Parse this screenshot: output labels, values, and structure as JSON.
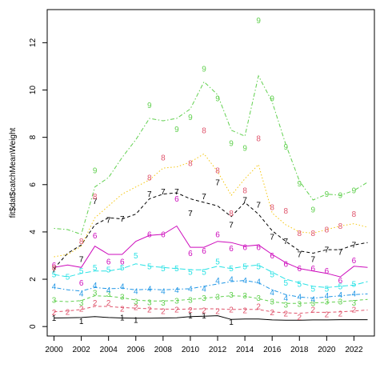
{
  "chart_data": {
    "type": "line",
    "ylabel": "fit$dat$catchMeanWeight",
    "xlabel": "",
    "xlim": [
      1999.5,
      2023.5
    ],
    "ylim": [
      -0.4,
      13.4
    ],
    "x_ticks": [
      2000,
      2002,
      2004,
      2006,
      2008,
      2010,
      2012,
      2014,
      2016,
      2018,
      2020,
      2022
    ],
    "x_tick_labels": [
      "2000",
      "2002",
      "2004",
      "2006",
      "2008",
      "2010",
      "2012",
      "2014",
      "2016",
      "2018",
      "2020",
      "2022"
    ],
    "y_ticks": [
      0,
      2,
      4,
      6,
      8,
      10,
      12
    ],
    "y_tick_labels": [
      "0",
      "2",
      "4",
      "6",
      "8",
      "10",
      "12"
    ],
    "grid": false,
    "legend": "none",
    "series": [
      {
        "marker": "1",
        "color": "#000000",
        "line_style": "solid",
        "points": {
          "x": [
            2000,
            2002,
            2005,
            2006,
            2010,
            2011,
            2013
          ],
          "y": [
            0.36,
            0.22,
            0.38,
            0.28,
            0.46,
            0.46,
            0.2
          ]
        },
        "fit": {
          "x": [
            2000,
            2001,
            2002,
            2003,
            2004,
            2005,
            2006,
            2007,
            2008,
            2009,
            2010,
            2011,
            2012,
            2013,
            2014,
            2015,
            2016,
            2017,
            2018,
            2019,
            2020,
            2021,
            2022,
            2023
          ],
          "y": [
            0.36,
            0.37,
            0.38,
            0.42,
            0.38,
            0.36,
            0.35,
            0.35,
            0.36,
            0.37,
            0.42,
            0.44,
            0.46,
            0.3,
            0.32,
            0.32,
            0.28,
            0.27,
            0.27,
            0.28,
            0.28,
            0.29,
            0.29,
            0.29
          ]
        }
      },
      {
        "marker": "2",
        "color": "#df536b",
        "line_style": "dashed",
        "points": {
          "x": [
            2000,
            2001,
            2002,
            2003,
            2004,
            2005,
            2006,
            2007,
            2008,
            2009,
            2010,
            2011,
            2012,
            2013,
            2014,
            2015,
            2016,
            2017,
            2018,
            2019,
            2020,
            2021,
            2022
          ],
          "y": [
            0.6,
            0.62,
            0.75,
            1.0,
            1.0,
            0.75,
            0.82,
            0.72,
            0.65,
            0.72,
            0.7,
            0.68,
            0.65,
            0.72,
            0.68,
            0.85,
            0.6,
            0.55,
            0.4,
            0.72,
            0.52,
            0.55,
            0.72
          ]
        },
        "fit": {
          "x": [
            2000,
            2001,
            2002,
            2003,
            2004,
            2005,
            2006,
            2007,
            2008,
            2009,
            2010,
            2011,
            2012,
            2013,
            2014,
            2015,
            2016,
            2017,
            2018,
            2019,
            2020,
            2021,
            2022,
            2023
          ],
          "y": [
            0.62,
            0.66,
            0.72,
            0.85,
            0.85,
            0.8,
            0.78,
            0.75,
            0.74,
            0.73,
            0.74,
            0.75,
            0.75,
            0.72,
            0.73,
            0.72,
            0.62,
            0.58,
            0.56,
            0.6,
            0.6,
            0.62,
            0.66,
            0.7
          ]
        }
      },
      {
        "marker": "3",
        "color": "#61d04f",
        "line_style": "dashed",
        "points": {
          "x": [
            2000,
            2002,
            2003,
            2004,
            2005,
            2006,
            2007,
            2008,
            2009,
            2010,
            2011,
            2012,
            2013,
            2014,
            2015,
            2016,
            2017,
            2018,
            2019,
            2020,
            2021,
            2022
          ],
          "y": [
            1.12,
            1.0,
            1.42,
            1.38,
            1.25,
            1.05,
            1.02,
            1.0,
            1.08,
            1.12,
            1.2,
            1.25,
            1.35,
            1.3,
            1.2,
            1.05,
            0.92,
            0.95,
            0.98,
            1.05,
            1.05,
            1.0
          ]
        },
        "fit": {
          "x": [
            2000,
            2001,
            2002,
            2003,
            2004,
            2005,
            2006,
            2007,
            2008,
            2009,
            2010,
            2011,
            2012,
            2013,
            2014,
            2015,
            2016,
            2017,
            2018,
            2019,
            2020,
            2021,
            2022,
            2023
          ],
          "y": [
            1.08,
            1.05,
            1.1,
            1.3,
            1.28,
            1.22,
            1.12,
            1.08,
            1.08,
            1.1,
            1.15,
            1.2,
            1.25,
            1.3,
            1.28,
            1.18,
            1.05,
            0.98,
            0.98,
            1.0,
            1.02,
            1.05,
            1.1,
            1.15
          ]
        }
      },
      {
        "marker": "4",
        "color": "#2297e6",
        "line_style": "dotdash",
        "points": {
          "x": [
            2000,
            2002,
            2003,
            2004,
            2005,
            2006,
            2007,
            2008,
            2009,
            2010,
            2011,
            2012,
            2013,
            2014,
            2015,
            2016,
            2017,
            2018,
            2019,
            2020,
            2021,
            2022
          ],
          "y": [
            1.7,
            1.4,
            1.75,
            1.55,
            1.7,
            1.5,
            1.6,
            1.5,
            1.55,
            1.6,
            1.6,
            1.95,
            2.0,
            1.95,
            1.9,
            1.45,
            1.2,
            1.25,
            1.15,
            1.3,
            1.35,
            1.4
          ]
        },
        "fit": {
          "x": [
            2000,
            2001,
            2002,
            2003,
            2004,
            2005,
            2006,
            2007,
            2008,
            2009,
            2010,
            2011,
            2012,
            2013,
            2014,
            2015,
            2016,
            2017,
            2018,
            2019,
            2020,
            2021,
            2022,
            2023
          ],
          "y": [
            1.65,
            1.55,
            1.5,
            1.65,
            1.6,
            1.62,
            1.55,
            1.58,
            1.55,
            1.58,
            1.6,
            1.7,
            1.8,
            1.9,
            1.95,
            1.85,
            1.55,
            1.35,
            1.25,
            1.2,
            1.25,
            1.3,
            1.35,
            1.38
          ]
        }
      },
      {
        "marker": "5",
        "color": "#28e2e5",
        "line_style": "longdash",
        "points": {
          "x": [
            2000,
            2001,
            2002,
            2003,
            2004,
            2005,
            2006,
            2007,
            2008,
            2009,
            2010,
            2011,
            2012,
            2013,
            2014,
            2015,
            2016,
            2017,
            2018,
            2019,
            2020,
            2021,
            2022
          ],
          "y": [
            2.2,
            2.1,
            2.35,
            2.5,
            2.4,
            2.5,
            3.0,
            2.55,
            2.45,
            2.45,
            2.3,
            2.3,
            2.75,
            2.45,
            2.55,
            2.55,
            2.2,
            1.85,
            1.8,
            1.6,
            1.6,
            1.7,
            1.8
          ]
        },
        "fit": {
          "x": [
            2000,
            2001,
            2002,
            2003,
            2004,
            2005,
            2006,
            2007,
            2008,
            2009,
            2010,
            2011,
            2012,
            2013,
            2014,
            2015,
            2016,
            2017,
            2018,
            2019,
            2020,
            2021,
            2022,
            2023
          ],
          "y": [
            2.2,
            2.1,
            2.25,
            2.35,
            2.35,
            2.45,
            2.65,
            2.55,
            2.5,
            2.45,
            2.4,
            2.4,
            2.55,
            2.45,
            2.55,
            2.6,
            2.3,
            2.0,
            1.85,
            1.7,
            1.65,
            1.7,
            1.75,
            1.9
          ]
        }
      },
      {
        "marker": "6",
        "color": "#cd0bbc",
        "line_style": "solid",
        "points": {
          "x": [
            2000,
            2002,
            2003,
            2004,
            2005,
            2007,
            2008,
            2009,
            2010,
            2011,
            2012,
            2013,
            2014,
            2015,
            2016,
            2017,
            2018,
            2019,
            2020,
            2021,
            2022
          ],
          "y": [
            2.6,
            1.85,
            3.85,
            2.75,
            2.75,
            3.9,
            3.9,
            5.4,
            3.1,
            3.2,
            3.9,
            3.3,
            3.35,
            3.35,
            3.0,
            2.65,
            2.45,
            2.45,
            2.35,
            1.95,
            2.8
          ]
        },
        "fit": {
          "x": [
            2000,
            2001,
            2002,
            2003,
            2004,
            2005,
            2006,
            2007,
            2008,
            2009,
            2010,
            2011,
            2012,
            2013,
            2014,
            2015,
            2016,
            2017,
            2018,
            2019,
            2020,
            2021,
            2022,
            2023
          ],
          "y": [
            2.5,
            2.6,
            2.5,
            3.4,
            3.05,
            3.05,
            3.6,
            3.85,
            3.9,
            4.25,
            3.35,
            3.35,
            3.6,
            3.55,
            3.4,
            3.45,
            3.05,
            2.7,
            2.45,
            2.35,
            2.25,
            2.1,
            2.55,
            2.5
          ]
        }
      },
      {
        "marker": "7",
        "color": "#000000",
        "line_style": "dashed",
        "points": {
          "x": [
            2000,
            2002,
            2003,
            2004,
            2005,
            2007,
            2008,
            2009,
            2010,
            2011,
            2012,
            2013,
            2014,
            2015,
            2016,
            2017,
            2018,
            2019,
            2020,
            2021,
            2022
          ],
          "y": [
            2.4,
            2.85,
            5.3,
            4.5,
            4.55,
            5.6,
            5.7,
            5.7,
            4.8,
            5.5,
            6.1,
            4.3,
            5.35,
            5.15,
            3.8,
            3.6,
            3.05,
            2.85,
            3.25,
            3.15,
            3.45
          ]
        },
        "fit": {
          "x": [
            2000,
            2001,
            2002,
            2003,
            2004,
            2005,
            2006,
            2007,
            2008,
            2009,
            2010,
            2011,
            2012,
            2013,
            2014,
            2015,
            2016,
            2017,
            2018,
            2019,
            2020,
            2021,
            2022,
            2023
          ],
          "y": [
            2.45,
            3.1,
            3.45,
            4.3,
            4.6,
            4.55,
            4.75,
            5.4,
            5.6,
            5.65,
            5.4,
            5.25,
            5.1,
            4.65,
            5.25,
            4.75,
            4.05,
            3.6,
            3.2,
            3.1,
            3.25,
            3.25,
            3.45,
            3.55
          ]
        }
      },
      {
        "marker": "8",
        "color": "#f5c710",
        "text_color": "#df536b",
        "line_style": "dotted",
        "points": {
          "x": [
            2000,
            2002,
            2003,
            2007,
            2008,
            2010,
            2011,
            2012,
            2013,
            2014,
            2015,
            2016,
            2017,
            2018,
            2019,
            2020,
            2021,
            2022
          ],
          "y": [
            2.5,
            3.6,
            5.5,
            6.3,
            7.15,
            6.9,
            8.3,
            6.6,
            4.8,
            5.75,
            7.95,
            5.05,
            4.9,
            3.95,
            3.95,
            4.1,
            4.25,
            4.75
          ]
        },
        "fit": {
          "x": [
            2000,
            2001,
            2002,
            2003,
            2004,
            2005,
            2006,
            2007,
            2008,
            2009,
            2010,
            2011,
            2012,
            2013,
            2014,
            2015,
            2016,
            2017,
            2018,
            2019,
            2020,
            2021,
            2022,
            2023
          ],
          "y": [
            2.95,
            3.05,
            3.4,
            4.6,
            5.1,
            5.6,
            5.9,
            6.2,
            6.7,
            6.75,
            6.95,
            7.3,
            6.55,
            5.55,
            6.25,
            6.85,
            4.8,
            4.3,
            4.0,
            3.95,
            4.1,
            4.25,
            4.35,
            4.2
          ]
        }
      },
      {
        "marker": "9",
        "color": "#61d04f",
        "line_style": "dotdash",
        "points": {
          "x": [
            2003,
            2007,
            2009,
            2010,
            2011,
            2012,
            2013,
            2014,
            2015,
            2016,
            2017,
            2018,
            2019,
            2020,
            2021,
            2022
          ],
          "y": [
            6.6,
            9.35,
            8.35,
            8.85,
            10.9,
            9.65,
            7.75,
            7.55,
            12.95,
            9.65,
            7.6,
            6.05,
            4.95,
            5.6,
            5.55,
            5.75
          ]
        },
        "fit": {
          "x": [
            2000,
            2001,
            2002,
            2003,
            2004,
            2005,
            2006,
            2007,
            2008,
            2009,
            2010,
            2011,
            2012,
            2013,
            2014,
            2015,
            2016,
            2017,
            2018,
            2019,
            2020,
            2021,
            2022,
            2023
          ],
          "y": [
            4.15,
            4.1,
            3.9,
            5.9,
            6.3,
            7.15,
            7.9,
            8.8,
            8.7,
            8.8,
            9.2,
            10.35,
            9.8,
            8.3,
            8.05,
            10.6,
            9.5,
            7.7,
            6.15,
            5.35,
            5.6,
            5.55,
            5.75,
            6.1
          ]
        }
      }
    ]
  }
}
